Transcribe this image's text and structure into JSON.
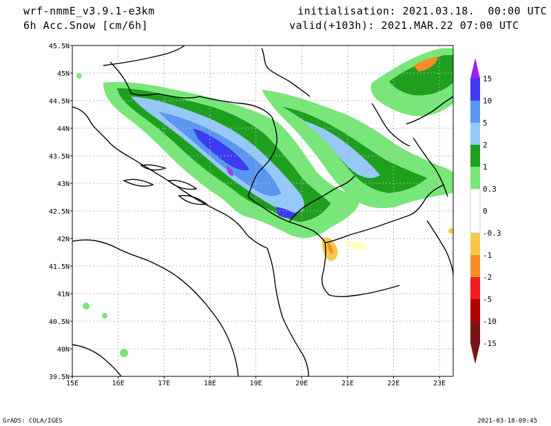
{
  "header": {
    "model": "wrf-nmmE_v3.9.1-e3km",
    "variable": "6h Acc.Snow [cm/6h]",
    "initialisation": "initialisation: 2021.03.18.  00:00 UTC",
    "valid": "valid(+103h): 2021.MAR.22 07:00 UTC"
  },
  "footer": {
    "left": "GrADS: COLA/IGES",
    "right": "2021-03-18-09:45"
  },
  "map": {
    "lon_range": [
      15,
      23.3
    ],
    "lat_range": [
      39.5,
      45.5
    ],
    "lon_ticks": [
      "15E",
      "16E",
      "17E",
      "18E",
      "19E",
      "20E",
      "21E",
      "22E",
      "23E"
    ],
    "lat_ticks": [
      "39.5N",
      "40N",
      "40.5N",
      "41N",
      "41.5N",
      "42N",
      "42.5N",
      "43N",
      "43.5N",
      "44N",
      "44.5N",
      "45N",
      "45.5N"
    ],
    "grid": true
  },
  "colorbar": {
    "labels": [
      "15",
      "10",
      "5",
      "2",
      "1",
      "0.3",
      "0",
      "-0.3",
      "-1",
      "-2",
      "-5",
      "-10",
      "-15"
    ],
    "colors": [
      "#a03cf0",
      "#3c3cf0",
      "#5a96f0",
      "#96c8f8",
      "#1ea01e",
      "#78e678",
      "#ffffff",
      "#ffffc8",
      "#f8c84c",
      "#f88c28",
      "#f01e1e",
      "#b40000",
      "#781414"
    ],
    "top_arrow_color": "#a020f0",
    "bottom_arrow_color": "#781414"
  }
}
